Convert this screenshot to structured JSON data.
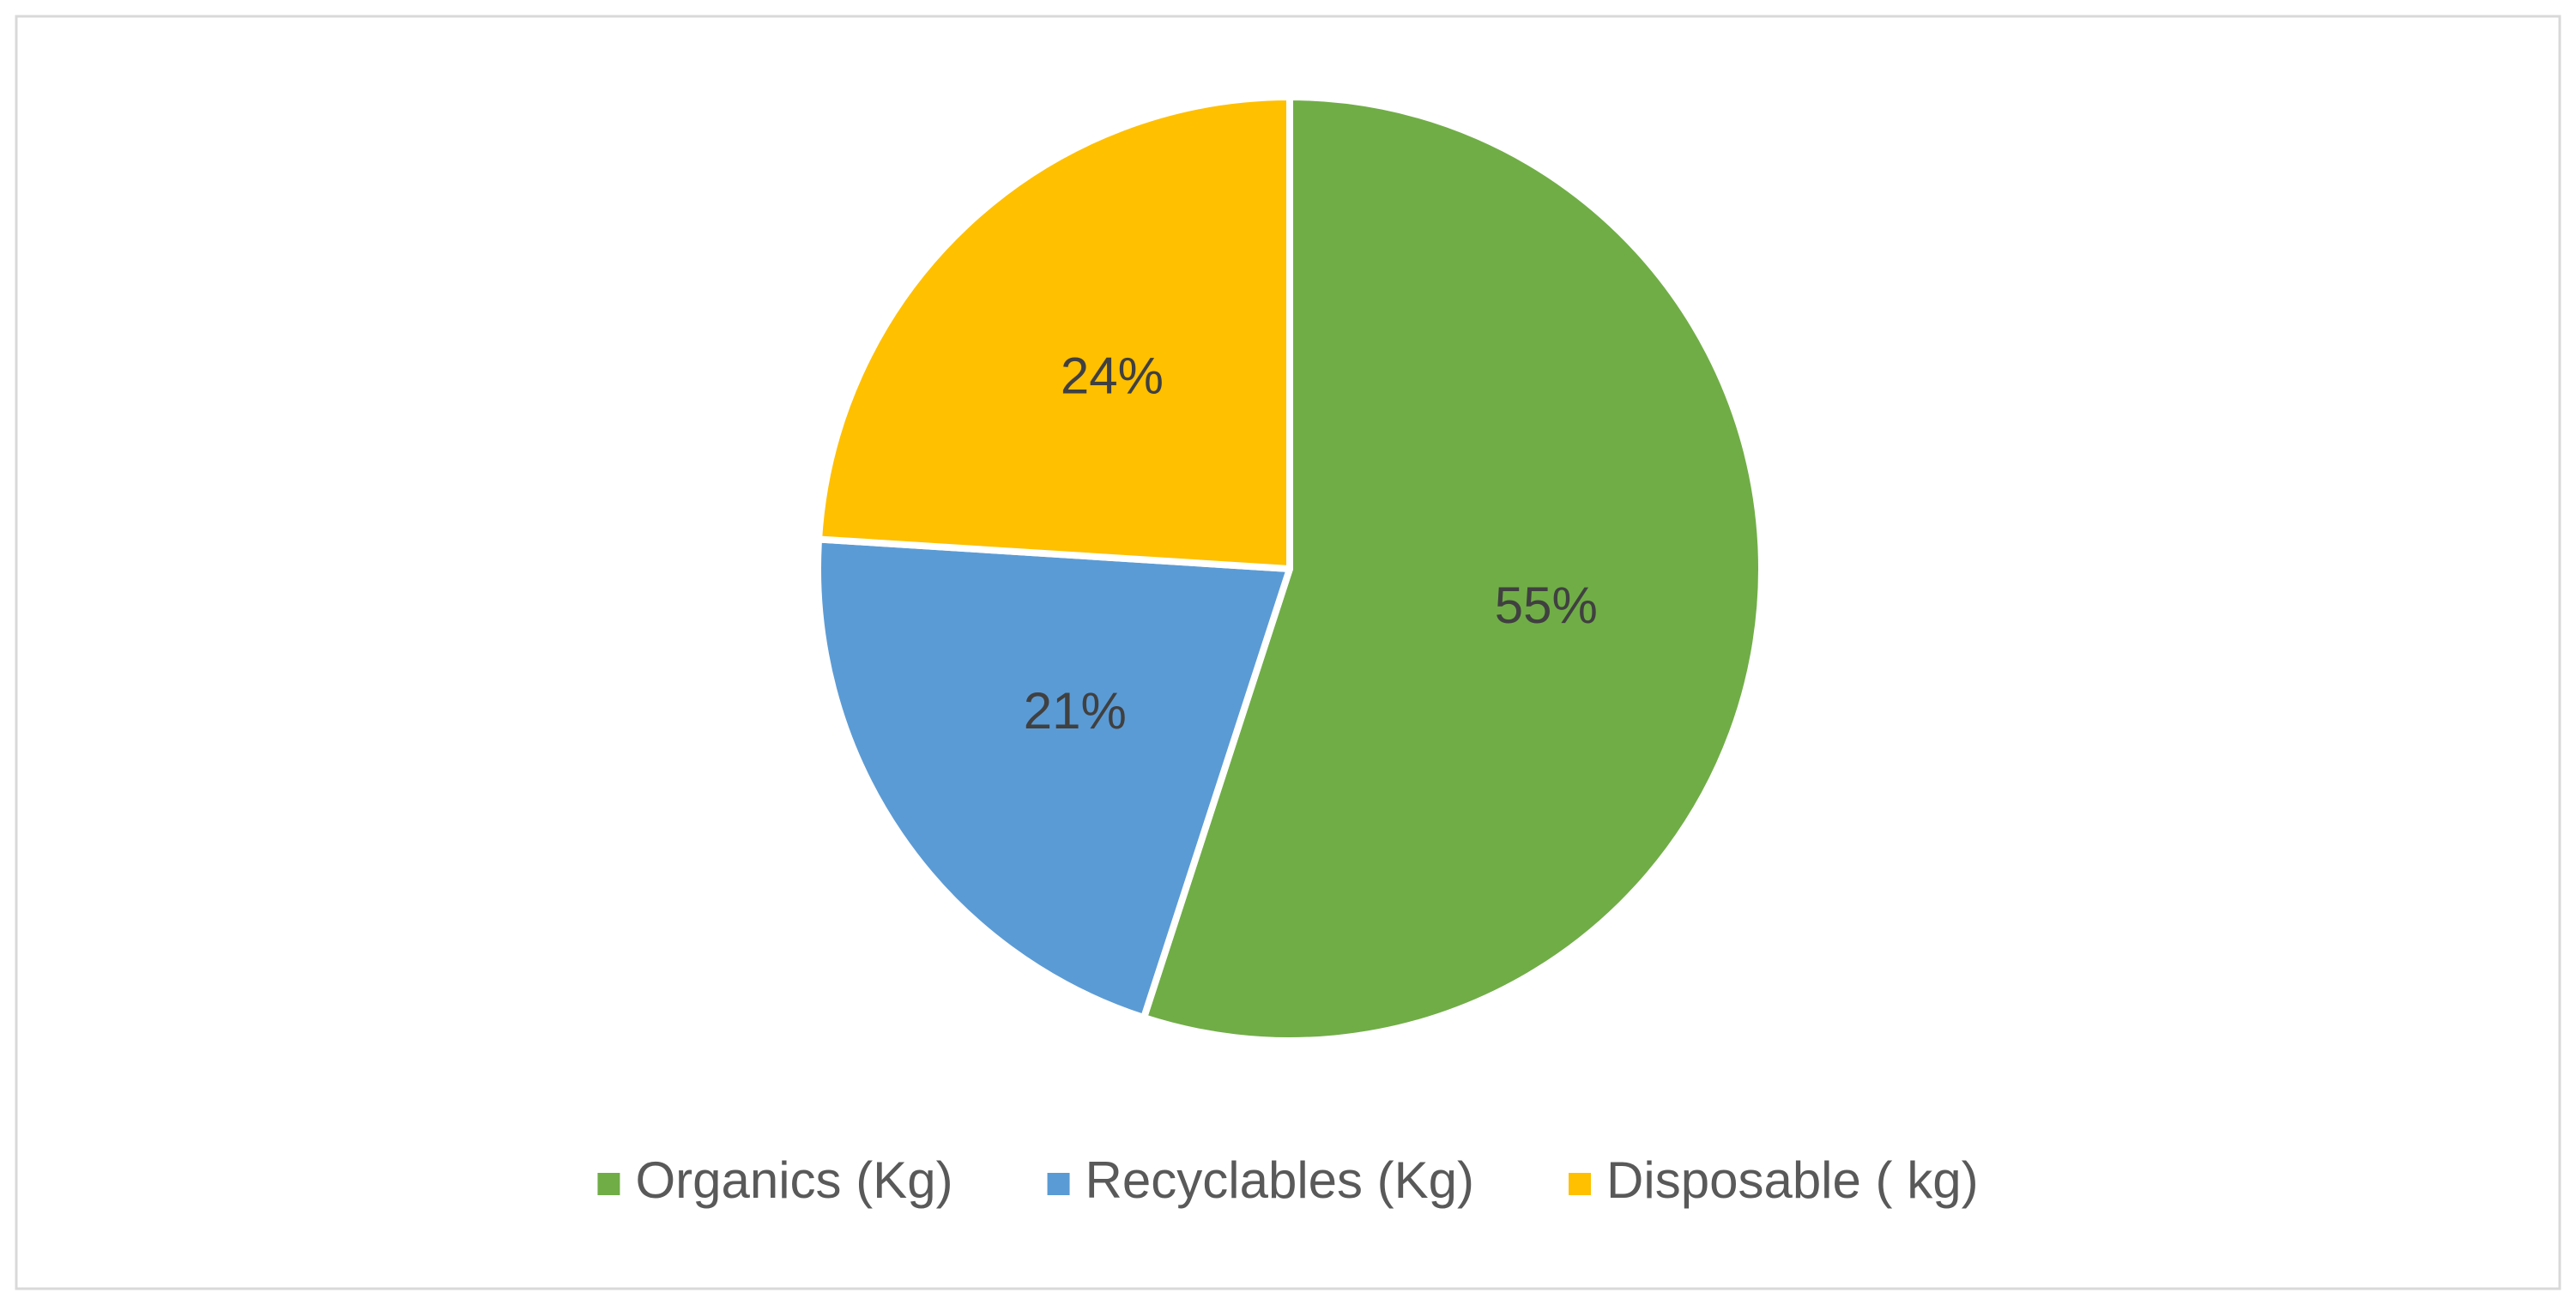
{
  "chart_data": {
    "type": "pie",
    "categories": [
      "Organics (Kg)",
      "Recyclables (Kg)",
      "Disposable ( kg)"
    ],
    "values": [
      55,
      21,
      24
    ],
    "value_labels": [
      "55%",
      "21%",
      "24%"
    ],
    "colors": [
      "#70AD47",
      "#5B9BD5",
      "#FFC000"
    ],
    "legend": "bottom"
  }
}
